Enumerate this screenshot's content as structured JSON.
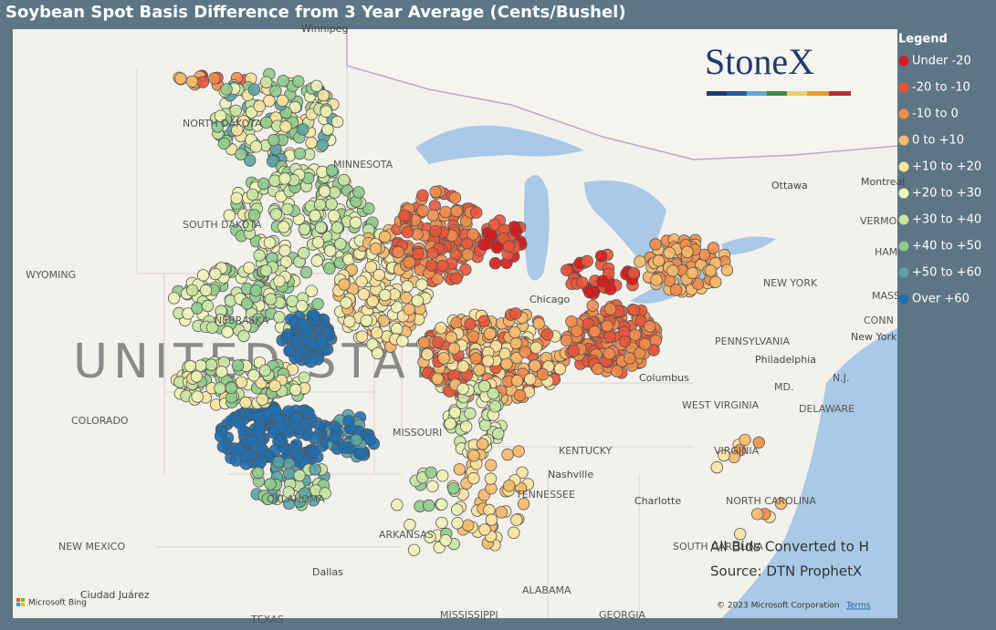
{
  "title": "Soybean Spot Basis Difference from 3 Year Average (Cents/Bushel)",
  "brand": "StoneX",
  "legend": {
    "title": "Legend",
    "items": [
      {
        "label": "Under -20",
        "color": "#d7191c"
      },
      {
        "label": "-20 to -10",
        "color": "#e8553a"
      },
      {
        "label": "-10 to 0",
        "color": "#f08c4b"
      },
      {
        "label": "0 to +10",
        "color": "#f7b96a"
      },
      {
        "label": "+10 to +20",
        "color": "#fbe3a0"
      },
      {
        "label": "+20 to +30",
        "color": "#eef3b6"
      },
      {
        "label": "+30 to +40",
        "color": "#c9e6a4"
      },
      {
        "label": "+40 to +50",
        "color": "#8fcb8c"
      },
      {
        "label": "+50 to +60",
        "color": "#5ba4a6"
      },
      {
        "label": "Over +60",
        "color": "#1f6fb0"
      }
    ]
  },
  "map": {
    "country": "UNITED STATES",
    "labels": [
      "Winnipeg",
      "NORTH DAKOTA",
      "MINNESOTA",
      "SOUTH DAKOTA",
      "WYOMING",
      "NEBRASKA",
      "COLORADO",
      "MISSOURI",
      "KENTUCKY",
      "TENNESSEE",
      "Nashville",
      "OKLAHOMA",
      "ARKANSAS",
      "NEW MEXICO",
      "Dallas",
      "ALABAMA",
      "GEORGIA",
      "MISSISSIPPI",
      "TEXAS",
      "Ciudad Juárez",
      "Chicago",
      "Columbus",
      "WEST VIRGINIA",
      "VIRGINIA",
      "Charlotte",
      "NORTH CAROLINA",
      "SOUTH CAROLINA",
      "PENNSYLVANIA",
      "Philadelphia",
      "NEW YORK",
      "New York",
      "Ottawa",
      "Montreal",
      "VERMONT",
      "MD.",
      "DELAWARE",
      "N.J.",
      "CONN",
      "MASS",
      "HAM"
    ]
  },
  "notes": [
    "All Bids Converted to H",
    "Source: DTN ProphetX"
  ],
  "attribution": {
    "provider": "Microsoft Bing",
    "copyright": "© 2023 Microsoft Corporation",
    "terms": "Terms"
  }
}
